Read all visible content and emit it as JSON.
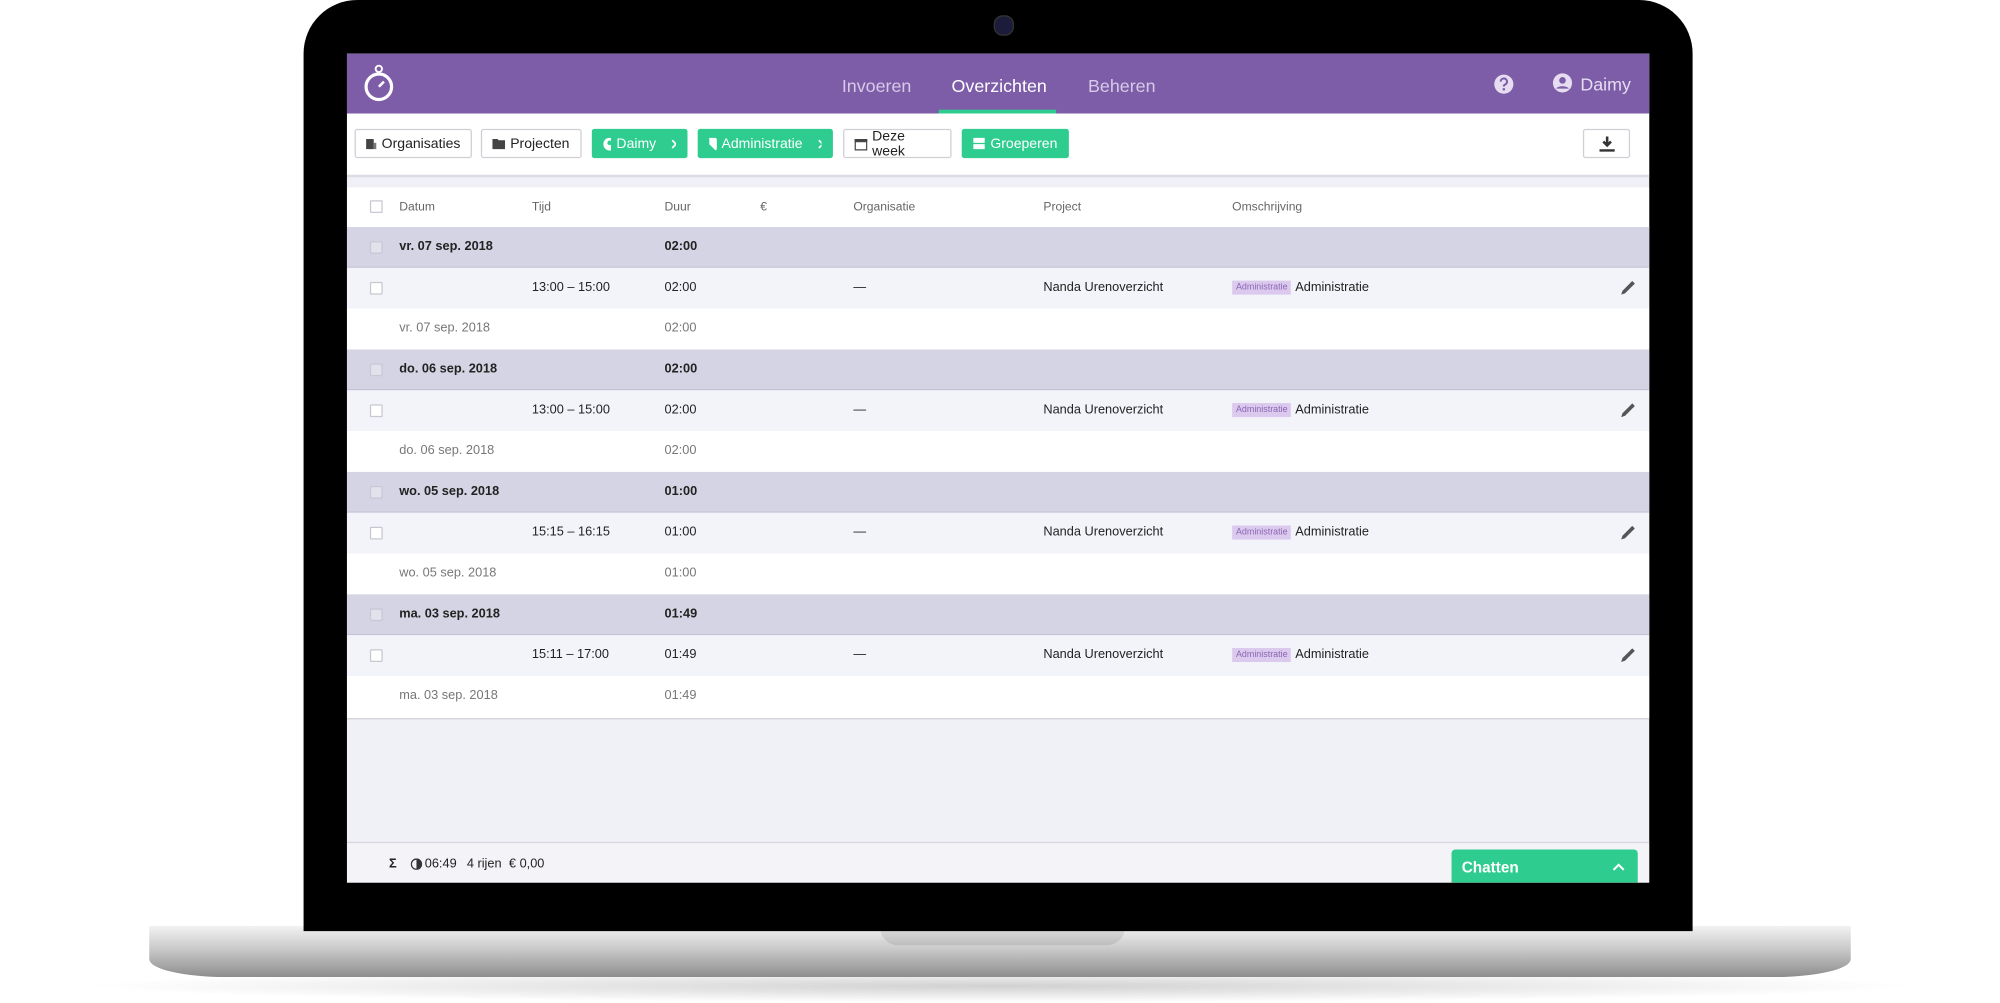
{
  "header": {
    "nav": [
      "Invoeren",
      "Overzichten",
      "Beheren"
    ],
    "user": "Daimy"
  },
  "toolbar": {
    "filters": [
      "Organisaties",
      "Projecten",
      "Daimy",
      "Administratie",
      "Deze week",
      "Groeperen"
    ]
  },
  "table": {
    "columns": [
      "Datum",
      "Tijd",
      "Duur",
      "€",
      "Organisatie",
      "Project",
      "Omschrijving"
    ],
    "groups": [
      {
        "date": "vr. 07 sep. 2018",
        "total": "02:00",
        "entry": {
          "time": "13:00 – 15:00",
          "duration": "02:00",
          "organisation": "—",
          "project": "Nanda Urenoverzicht",
          "tag": "Administratie",
          "description": "Administratie"
        },
        "subtotal_date": "vr. 07 sep. 2018",
        "subtotal_duration": "02:00"
      },
      {
        "date": "do. 06 sep. 2018",
        "total": "02:00",
        "entry": {
          "time": "13:00 – 15:00",
          "duration": "02:00",
          "organisation": "—",
          "project": "Nanda Urenoverzicht",
          "tag": "Administratie",
          "description": "Administratie"
        },
        "subtotal_date": "do. 06 sep. 2018",
        "subtotal_duration": "02:00"
      },
      {
        "date": "wo. 05 sep. 2018",
        "total": "01:00",
        "entry": {
          "time": "15:15 – 16:15",
          "duration": "01:00",
          "organisation": "—",
          "project": "Nanda Urenoverzicht",
          "tag": "Administratie",
          "description": "Administratie"
        },
        "subtotal_date": "wo. 05 sep. 2018",
        "subtotal_duration": "01:00"
      },
      {
        "date": "ma. 03 sep. 2018",
        "total": "01:49",
        "entry": {
          "time": "15:11 – 17:00",
          "duration": "01:49",
          "organisation": "—",
          "project": "Nanda Urenoverzicht",
          "tag": "Administratie",
          "description": "Administratie"
        },
        "subtotal_date": "ma. 03 sep. 2018",
        "subtotal_duration": "01:49"
      }
    ]
  },
  "footer": {
    "sigma": "Σ",
    "total": "06:49",
    "rows": "4 rijen",
    "amount": "€ 0,00"
  },
  "chat": {
    "label": "Chatten"
  }
}
